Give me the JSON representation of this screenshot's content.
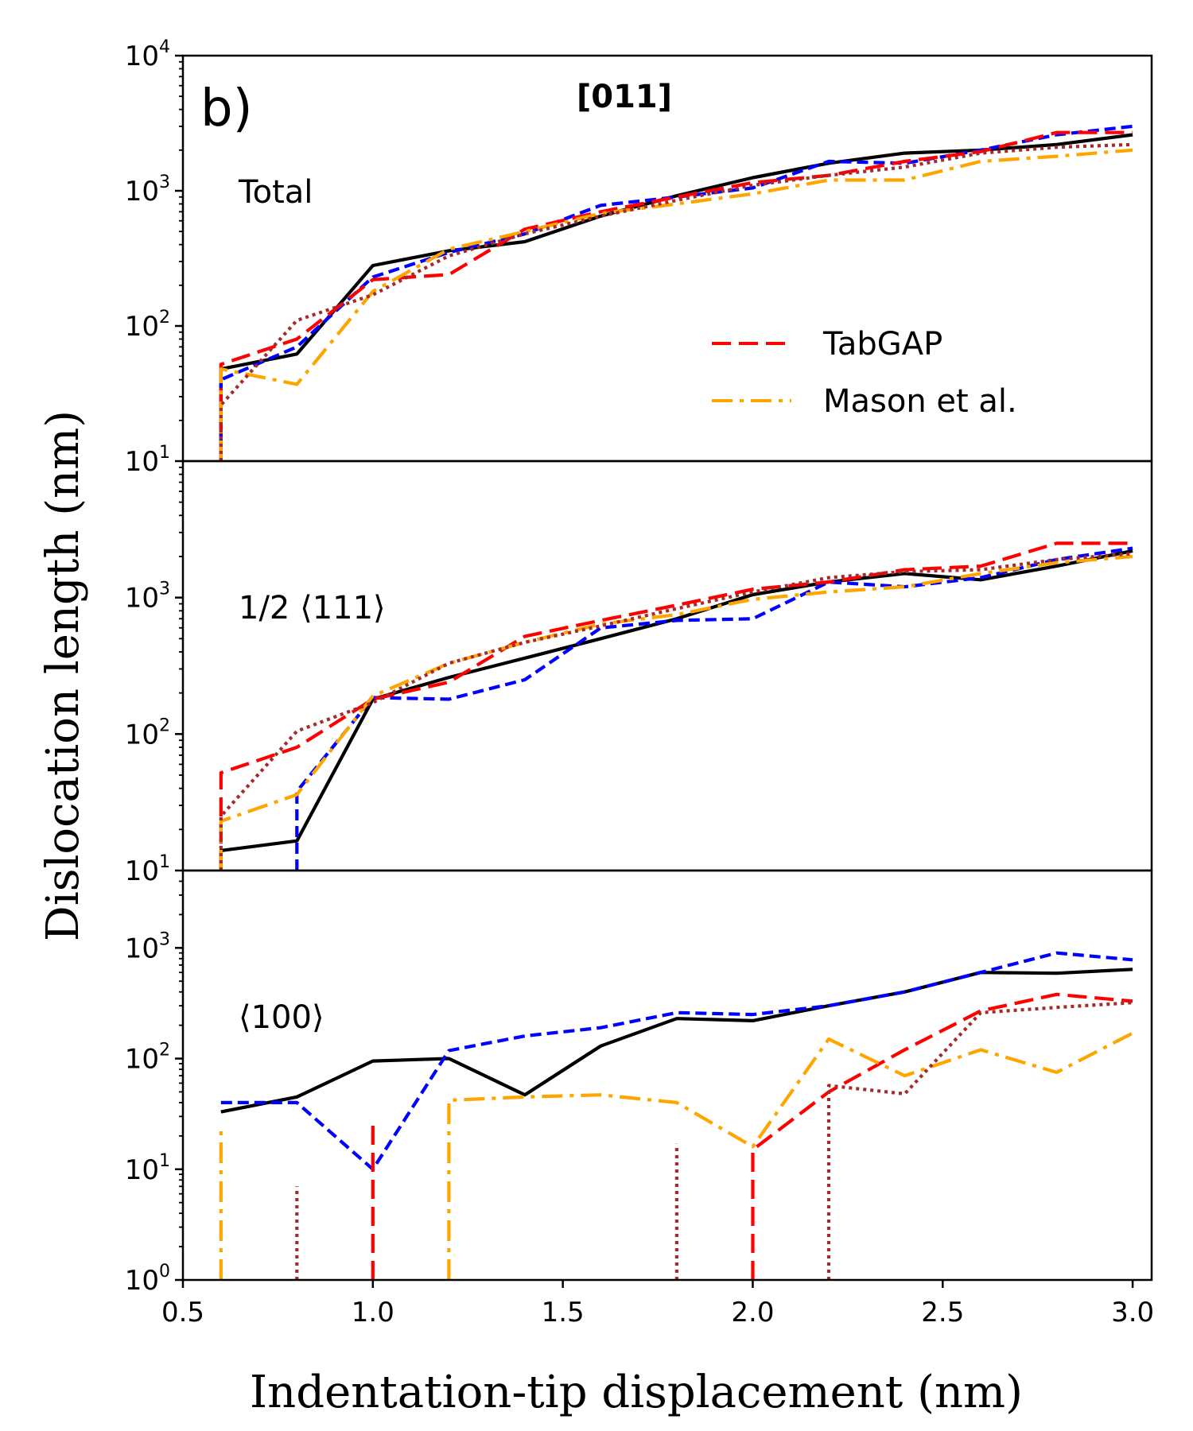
{
  "figure": {
    "label": "b)",
    "title": "[011]",
    "xlabel": "Indentation-tip displacement (nm)",
    "ylabel": "Dislocation length (nm)"
  },
  "legend": {
    "placement": "inside top panel, lower-right",
    "entries": [
      {
        "name": "TabGAP",
        "series_ref": "TabGAP"
      },
      {
        "name": "Mason et al.",
        "series_ref": "Mason et al."
      }
    ]
  },
  "styles": {
    "black": {
      "color": "#000000",
      "dash": ""
    },
    "blue": {
      "color": "#0000ff",
      "dash": "14,7"
    },
    "TabGAP": {
      "color": "#ff0000",
      "dash": "24,10"
    },
    "Mason et al.": {
      "color": "#ffa500",
      "dash": "26,9,5,9"
    },
    "brown": {
      "color": "#a52a2a",
      "dash": "4,5"
    }
  },
  "chart_data": [
    {
      "type": "line",
      "panel": "top",
      "label": "Total",
      "yscale": "log",
      "xlim": [
        0.5,
        3.05
      ],
      "ylim": [
        10,
        10000
      ],
      "xticks": [
        0.5,
        1.0,
        1.5,
        2.0,
        2.5,
        3.0
      ],
      "yticks": [
        10,
        100,
        1000,
        10000
      ],
      "ytick_base": "10",
      "ytick_exps": [
        "1",
        "2",
        "3",
        "4"
      ],
      "series": [
        {
          "name": "black",
          "x": [
            0.6,
            0.6,
            0.8,
            1.0,
            1.2,
            1.4,
            1.6,
            1.8,
            2.0,
            2.2,
            2.4,
            2.6,
            2.8,
            3.0
          ],
          "y": [
            10,
            48,
            62,
            280,
            360,
            420,
            650,
            920,
            1250,
            1600,
            1900,
            2000,
            2200,
            2600
          ]
        },
        {
          "name": "blue",
          "x": [
            0.6,
            0.6,
            0.8,
            1.0,
            1.2,
            1.4,
            1.6,
            1.8,
            2.0,
            2.2,
            2.4,
            2.6,
            2.8,
            3.0
          ],
          "y": [
            10,
            40,
            70,
            230,
            350,
            480,
            780,
            900,
            1050,
            1650,
            1600,
            2000,
            2600,
            3000
          ]
        },
        {
          "name": "TabGAP",
          "x": [
            0.6,
            0.6,
            0.8,
            1.0,
            1.1,
            1.2,
            1.4,
            1.6,
            1.8,
            2.0,
            2.2,
            2.4,
            2.6,
            2.8,
            3.0
          ],
          "y": [
            10,
            52,
            80,
            220,
            230,
            240,
            520,
            700,
            900,
            1150,
            1300,
            1650,
            1950,
            2700,
            2700
          ]
        },
        {
          "name": "Mason et al.",
          "x": [
            0.6,
            0.6,
            0.8,
            1.0,
            1.2,
            1.4,
            1.6,
            1.8,
            2.0,
            2.2,
            2.4,
            2.6,
            2.8,
            3.0
          ],
          "y": [
            10,
            48,
            37,
            180,
            370,
            500,
            680,
            800,
            950,
            1200,
            1200,
            1650,
            1800,
            2000
          ]
        },
        {
          "name": "brown",
          "x": [
            0.6,
            0.6,
            0.8,
            1.0,
            1.2,
            1.4,
            1.6,
            1.8,
            2.0,
            2.2,
            2.4,
            2.6,
            2.8,
            3.0
          ],
          "y": [
            10,
            26,
            110,
            170,
            330,
            480,
            650,
            850,
            1100,
            1300,
            1500,
            1900,
            2100,
            2200
          ]
        }
      ]
    },
    {
      "type": "line",
      "panel": "middle",
      "label": "1/2 ⟨111⟩",
      "yscale": "log",
      "xlim": [
        0.5,
        3.05
      ],
      "ylim": [
        10,
        10000
      ],
      "xticks": [
        0.5,
        1.0,
        1.5,
        2.0,
        2.5,
        3.0
      ],
      "yticks": [
        10,
        100,
        1000
      ],
      "ytick_base": "10",
      "ytick_exps": [
        "1",
        "2",
        "3"
      ],
      "series": [
        {
          "name": "black",
          "x": [
            0.6,
            0.6,
            0.8,
            1.0,
            1.2,
            1.4,
            1.6,
            1.8,
            2.0,
            2.2,
            2.4,
            2.6,
            2.8,
            3.0
          ],
          "y": [
            10,
            14,
            16.5,
            180,
            260,
            360,
            500,
            700,
            1050,
            1300,
            1500,
            1350,
            1700,
            2200
          ]
        },
        {
          "name": "blue",
          "x": [
            0.8,
            0.8,
            1.0,
            1.2,
            1.4,
            1.6,
            1.8,
            2.0,
            2.2,
            2.4,
            2.6,
            2.8,
            3.0
          ],
          "y": [
            10,
            38,
            185,
            180,
            250,
            600,
            680,
            700,
            1300,
            1200,
            1400,
            1900,
            2300
          ]
        },
        {
          "name": "TabGAP",
          "x": [
            0.6,
            0.6,
            0.8,
            1.0,
            1.2,
            1.4,
            1.6,
            1.8,
            2.0,
            2.2,
            2.4,
            2.6,
            2.8,
            3.0
          ],
          "y": [
            10,
            52,
            80,
            180,
            240,
            520,
            680,
            880,
            1150,
            1300,
            1600,
            1700,
            2500,
            2500
          ]
        },
        {
          "name": "Mason et al.",
          "x": [
            0.6,
            0.6,
            0.8,
            1.0,
            1.2,
            1.4,
            1.6,
            1.8,
            2.0,
            2.2,
            2.4,
            2.6,
            2.8,
            3.0
          ],
          "y": [
            10,
            23,
            36,
            190,
            330,
            470,
            640,
            750,
            970,
            1100,
            1200,
            1500,
            1800,
            2000
          ]
        },
        {
          "name": "brown",
          "x": [
            0.6,
            0.6,
            0.8,
            1.0,
            1.2,
            1.4,
            1.6,
            1.8,
            2.0,
            2.2,
            2.4,
            2.6,
            2.8,
            3.0
          ],
          "y": [
            10,
            25,
            105,
            170,
            330,
            470,
            620,
            830,
            1100,
            1400,
            1550,
            1600,
            1900,
            2100
          ]
        }
      ]
    },
    {
      "type": "line",
      "panel": "bottom",
      "label": "⟨100⟩",
      "yscale": "log",
      "xlim": [
        0.5,
        3.05
      ],
      "ylim": [
        1,
        5000
      ],
      "xticks": [
        0.5,
        1.0,
        1.5,
        2.0,
        2.5,
        3.0
      ],
      "xtick_labels": [
        "0.5",
        "1.0",
        "1.5",
        "2.0",
        "2.5",
        "3.0"
      ],
      "yticks": [
        1,
        10,
        100,
        1000
      ],
      "ytick_base": "10",
      "ytick_exps": [
        "0",
        "1",
        "2",
        "3"
      ],
      "series": [
        {
          "name": "black",
          "x": [
            0.6,
            0.8,
            1.0,
            1.2,
            1.4,
            1.6,
            1.8,
            2.0,
            2.2,
            2.4,
            2.6,
            2.8,
            3.0
          ],
          "y": [
            33,
            45,
            95,
            100,
            47,
            130,
            230,
            220,
            300,
            400,
            600,
            590,
            640
          ]
        },
        {
          "name": "blue",
          "x": [
            0.6,
            0.8,
            1.0,
            1.2,
            1.4,
            1.6,
            1.8,
            2.0,
            2.2,
            2.4,
            2.6,
            2.8,
            3.0
          ],
          "y": [
            40,
            40,
            10,
            118,
            160,
            190,
            260,
            250,
            300,
            400,
            600,
            900,
            780
          ]
        },
        {
          "name": "TabGAP",
          "x": [
            1.0,
            1.0
          ],
          "y": [
            1,
            28
          ]
        },
        {
          "name": "TabGAP",
          "x": [
            2.0,
            2.0,
            2.2,
            2.4,
            2.6,
            2.8,
            3.0
          ],
          "y": [
            1,
            15,
            50,
            120,
            270,
            380,
            330
          ]
        },
        {
          "name": "Mason et al.",
          "x": [
            0.6,
            0.6
          ],
          "y": [
            1,
            23
          ]
        },
        {
          "name": "Mason et al.",
          "x": [
            1.2,
            1.2,
            1.4,
            1.6,
            1.8,
            2.0,
            2.2,
            2.4,
            2.6,
            2.8,
            3.0
          ],
          "y": [
            1,
            42,
            45,
            47,
            40,
            16,
            150,
            70,
            120,
            75,
            170
          ]
        },
        {
          "name": "brown",
          "x": [
            0.8,
            0.8
          ],
          "y": [
            1,
            7
          ]
        },
        {
          "name": "brown",
          "x": [
            1.8,
            1.8
          ],
          "y": [
            1,
            17
          ]
        },
        {
          "name": "brown",
          "x": [
            2.2,
            2.2,
            2.4,
            2.6,
            2.8,
            3.0
          ],
          "y": [
            1,
            57,
            48,
            260,
            290,
            320
          ]
        }
      ]
    }
  ]
}
